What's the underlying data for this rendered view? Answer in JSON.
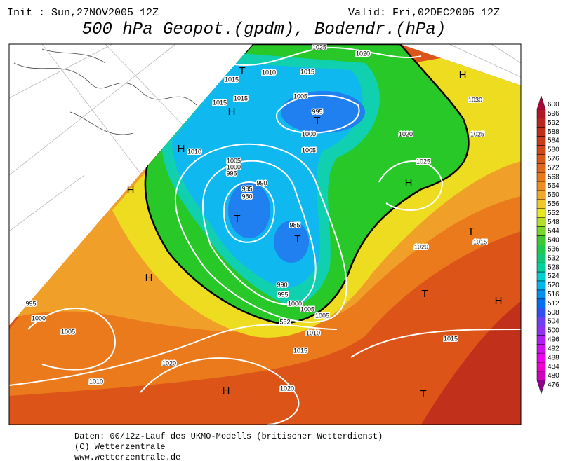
{
  "header": {
    "init": "Init : Sun,27NOV2005 12Z",
    "valid": "Valid: Fri,02DEC2005 12Z",
    "title": "500 hPa Geopot.(gpdm), Bodendr.(hPa)"
  },
  "map": {
    "isobar_labels": [
      "1025",
      "1020",
      "1010",
      "1015",
      "1015",
      "1015",
      "1015",
      "1005",
      "995",
      "1000",
      "1005",
      "1020",
      "1025",
      "1030",
      "1025",
      "1010",
      "1005",
      "1000",
      "995",
      "990",
      "985",
      "980",
      "985",
      "1020",
      "1015",
      "990",
      "995",
      "1000",
      "1005",
      "1005",
      "1010",
      "1015",
      "1015",
      "1020",
      "1020",
      "1005",
      "1000",
      "995",
      "1010",
      "552"
    ],
    "centers": [
      "T",
      "H",
      "T",
      "H",
      "H",
      "T",
      "T",
      "H",
      "H",
      "T",
      "H",
      "T",
      "H",
      "H",
      "T"
    ]
  },
  "colorbar": {
    "levels": [
      600,
      596,
      592,
      588,
      584,
      580,
      576,
      572,
      568,
      564,
      560,
      556,
      552,
      548,
      544,
      540,
      536,
      532,
      528,
      524,
      520,
      516,
      512,
      508,
      504,
      500,
      496,
      492,
      488,
      484,
      480,
      476
    ],
    "colors": [
      "#a80838",
      "#b01828",
      "#b82820",
      "#c03018",
      "#c83c18",
      "#d04818",
      "#d85818",
      "#e06818",
      "#e87818",
      "#f08c20",
      "#f0a828",
      "#f0c828",
      "#e8e820",
      "#b4e028",
      "#78d828",
      "#40c830",
      "#20c850",
      "#10c878",
      "#00d0a0",
      "#00d0d0",
      "#00b8f0",
      "#0090f0",
      "#0070f0",
      "#3050f0",
      "#7040f0",
      "#9030f0",
      "#b020f0",
      "#d010f0",
      "#f000f0",
      "#f000d0",
      "#d000c0",
      "#900090"
    ]
  },
  "footer": {
    "lines": [
      "Daten: 00/12z-Lauf des UKMO-Modells (britischer Wetterdienst)",
      "(C) Wetterzentrale",
      "www.wetterzentrale.de"
    ]
  }
}
